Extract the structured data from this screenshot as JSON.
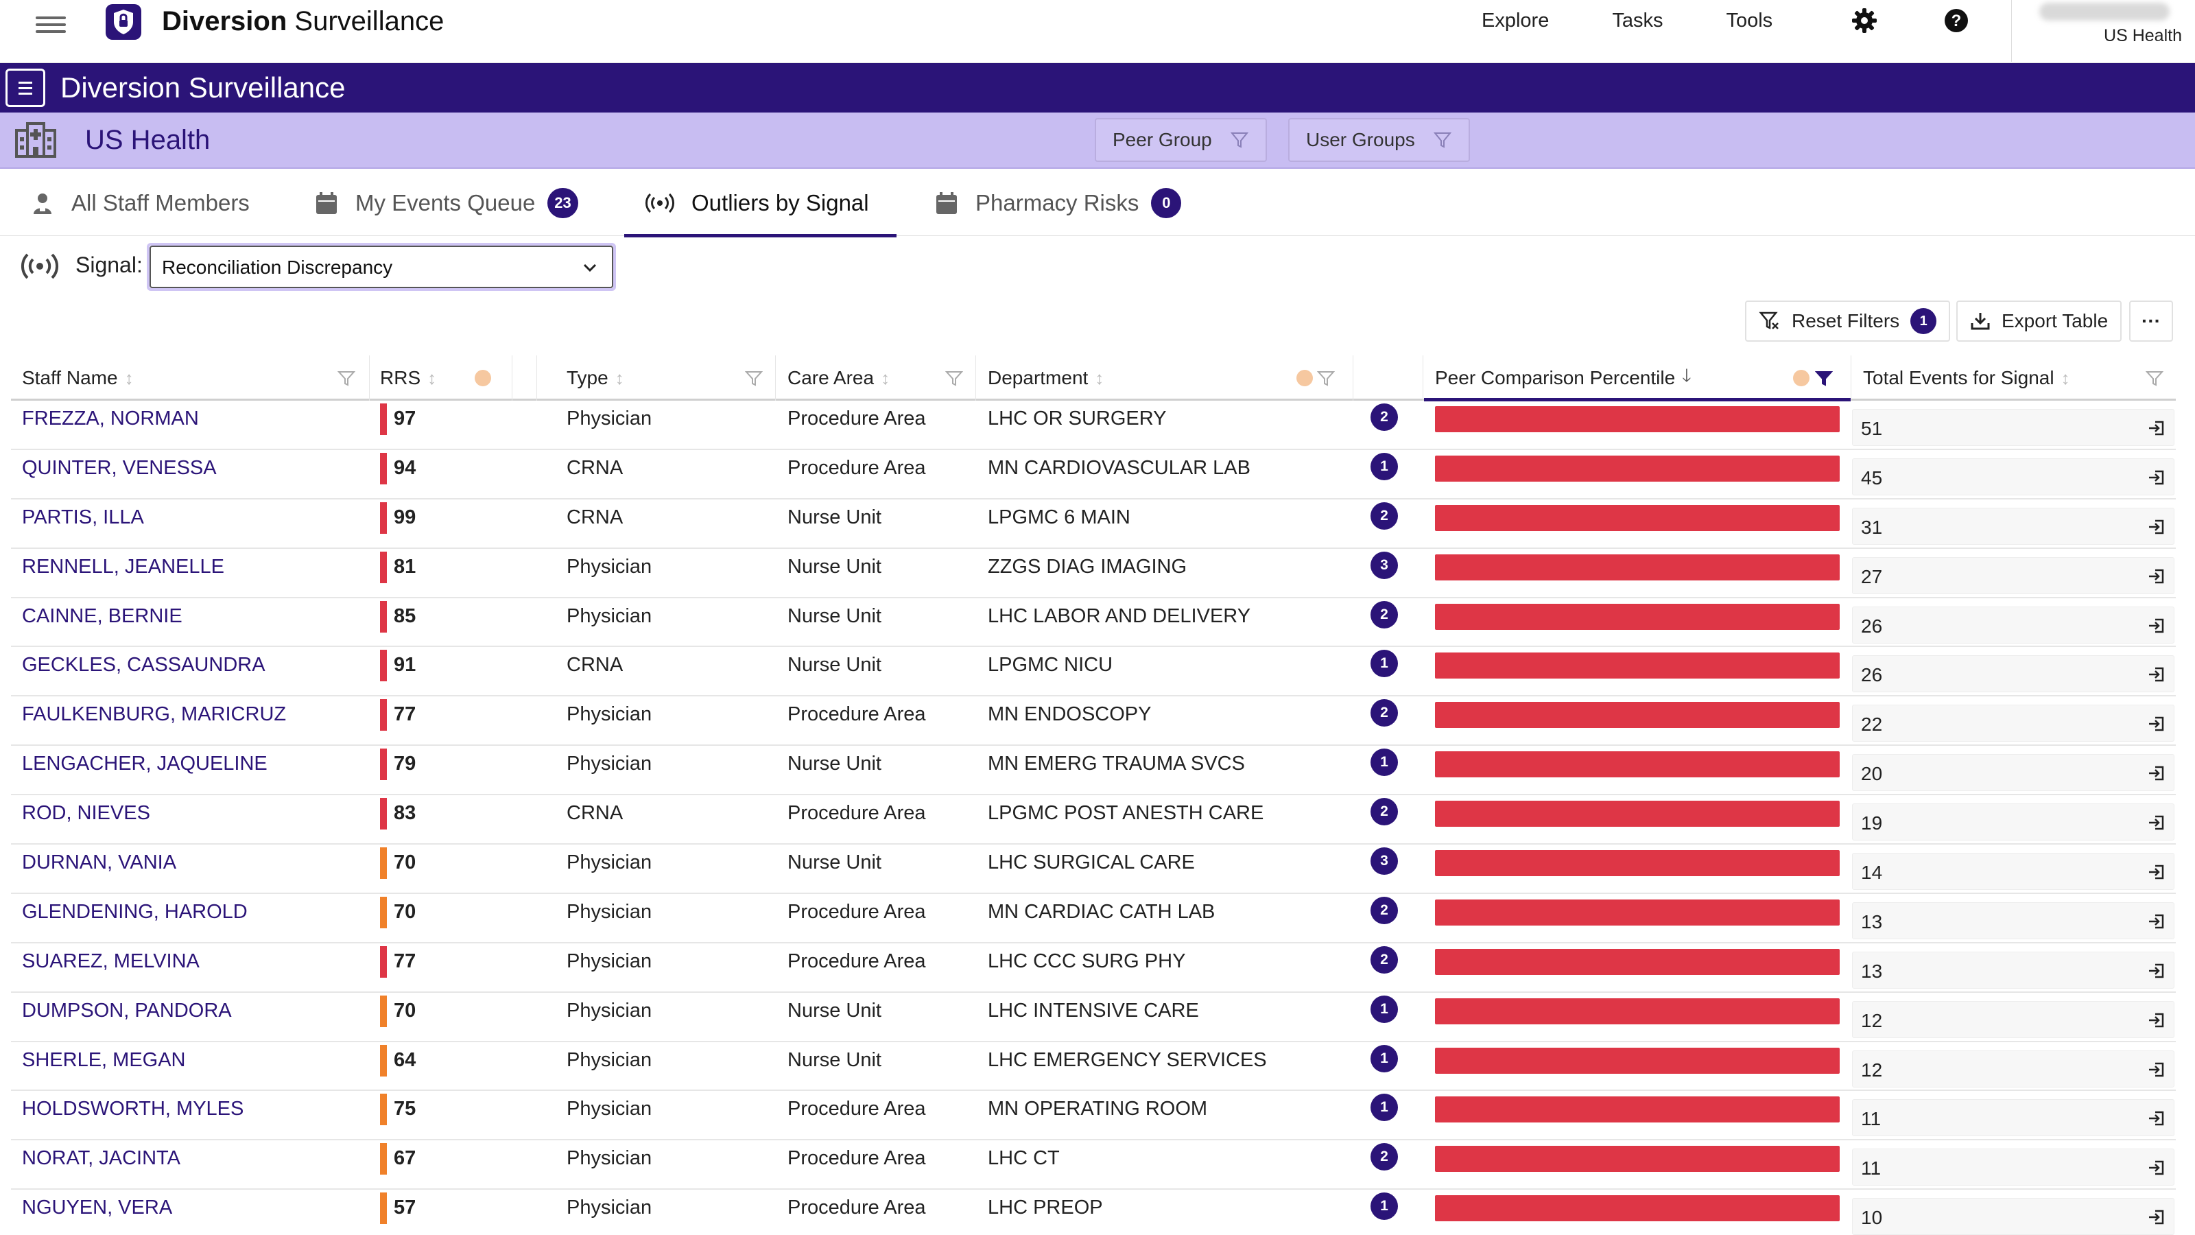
{
  "header": {
    "app_name_bold": "Diversion",
    "app_name_rest": "Surveillance",
    "nav": [
      "Explore",
      "Tasks",
      "Tools"
    ],
    "user_org": "US Health",
    "icons": [
      "menu-icon",
      "shield-logo-icon",
      "gear-icon",
      "help-icon"
    ]
  },
  "title_band": {
    "title": "Diversion Surveillance"
  },
  "org_band": {
    "org_name": "US Health",
    "filters": [
      "Peer Group",
      "User Groups"
    ]
  },
  "tabs": [
    {
      "label": "All Staff Members",
      "badge": null,
      "active": false,
      "icon": "person-badge-icon"
    },
    {
      "label": "My Events Queue",
      "badge": "23",
      "active": false,
      "icon": "calendar-icon"
    },
    {
      "label": "Outliers by Signal",
      "badge": null,
      "active": true,
      "icon": "signal-icon"
    },
    {
      "label": "Pharmacy Risks",
      "badge": "0",
      "active": false,
      "icon": "calendar-icon"
    }
  ],
  "signal": {
    "label": "Signal:",
    "value": "Reconciliation Discrepancy"
  },
  "toolbar": {
    "reset_label": "Reset Filters",
    "reset_badge": "1",
    "export_label": "Export Table",
    "more_label": "···"
  },
  "colors": {
    "brand": "#2b1478",
    "band_light": "#c8bdf2",
    "bar_red": "#de3646",
    "rrs_high": "#de3646",
    "rrs_medium": "#f0812a"
  },
  "table": {
    "columns": [
      "Staff Name",
      "RRS",
      "Type",
      "Care Area",
      "Department",
      "Peer Comparison Percentile",
      "Total Events for Signal"
    ],
    "rows": [
      {
        "name": "FREZZA, NORMAN",
        "rrs": "97",
        "level": "high",
        "type": "Physician",
        "area": "Procedure Area",
        "dept": "LHC OR SURGERY",
        "count": "2",
        "total": "51"
      },
      {
        "name": "QUINTER, VENESSA",
        "rrs": "94",
        "level": "high",
        "type": "CRNA",
        "area": "Procedure Area",
        "dept": "MN CARDIOVASCULAR LAB",
        "count": "1",
        "total": "45"
      },
      {
        "name": "PARTIS, ILLA",
        "rrs": "99",
        "level": "high",
        "type": "CRNA",
        "area": "Nurse Unit",
        "dept": "LPGMC 6 MAIN",
        "count": "2",
        "total": "31"
      },
      {
        "name": "RENNELL, JEANELLE",
        "rrs": "81",
        "level": "high",
        "type": "Physician",
        "area": "Nurse Unit",
        "dept": "ZZGS DIAG IMAGING",
        "count": "3",
        "total": "27"
      },
      {
        "name": "CAINNE, BERNIE",
        "rrs": "85",
        "level": "high",
        "type": "Physician",
        "area": "Nurse Unit",
        "dept": "LHC LABOR AND DELIVERY",
        "count": "2",
        "total": "26"
      },
      {
        "name": "GECKLES, CASSAUNDRA",
        "rrs": "91",
        "level": "high",
        "type": "CRNA",
        "area": "Nurse Unit",
        "dept": "LPGMC NICU",
        "count": "1",
        "total": "26"
      },
      {
        "name": "FAULKENBURG, MARICRUZ",
        "rrs": "77",
        "level": "high",
        "type": "Physician",
        "area": "Procedure Area",
        "dept": "MN ENDOSCOPY",
        "count": "2",
        "total": "22"
      },
      {
        "name": "LENGACHER, JAQUELINE",
        "rrs": "79",
        "level": "high",
        "type": "Physician",
        "area": "Nurse Unit",
        "dept": "MN EMERG TRAUMA SVCS",
        "count": "1",
        "total": "20"
      },
      {
        "name": "ROD, NIEVES",
        "rrs": "83",
        "level": "high",
        "type": "CRNA",
        "area": "Procedure Area",
        "dept": "LPGMC POST ANESTH CARE",
        "count": "2",
        "total": "19"
      },
      {
        "name": "DURNAN, VANIA",
        "rrs": "70",
        "level": "medium",
        "type": "Physician",
        "area": "Nurse Unit",
        "dept": "LHC SURGICAL CARE",
        "count": "3",
        "total": "14"
      },
      {
        "name": "GLENDENING, HAROLD",
        "rrs": "70",
        "level": "medium",
        "type": "Physician",
        "area": "Procedure Area",
        "dept": "MN CARDIAC CATH LAB",
        "count": "2",
        "total": "13"
      },
      {
        "name": "SUAREZ, MELVINA",
        "rrs": "77",
        "level": "high",
        "type": "Physician",
        "area": "Procedure Area",
        "dept": "LHC CCC SURG PHY",
        "count": "2",
        "total": "13"
      },
      {
        "name": "DUMPSON, PANDORA",
        "rrs": "70",
        "level": "medium",
        "type": "Physician",
        "area": "Nurse Unit",
        "dept": "LHC INTENSIVE CARE",
        "count": "1",
        "total": "12"
      },
      {
        "name": "SHERLE, MEGAN",
        "rrs": "64",
        "level": "medium",
        "type": "Physician",
        "area": "Nurse Unit",
        "dept": "LHC EMERGENCY SERVICES",
        "count": "1",
        "total": "12"
      },
      {
        "name": "HOLDSWORTH, MYLES",
        "rrs": "75",
        "level": "medium",
        "type": "Physician",
        "area": "Procedure Area",
        "dept": "MN OPERATING ROOM",
        "count": "1",
        "total": "11"
      },
      {
        "name": "NORAT, JACINTA",
        "rrs": "67",
        "level": "medium",
        "type": "Physician",
        "area": "Procedure Area",
        "dept": "LHC CT",
        "count": "2",
        "total": "11"
      },
      {
        "name": "NGUYEN, VERA",
        "rrs": "57",
        "level": "medium",
        "type": "Physician",
        "area": "Procedure Area",
        "dept": "LHC PREOP",
        "count": "1",
        "total": "10"
      }
    ]
  }
}
